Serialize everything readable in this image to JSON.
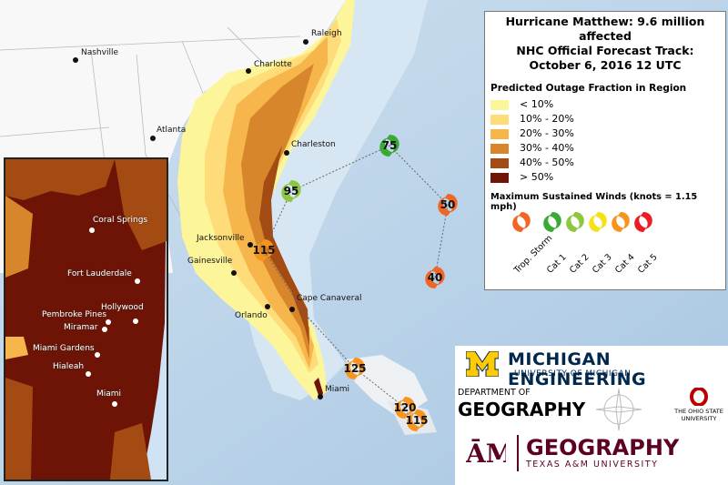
{
  "title": {
    "line1": "Hurricane Matthew: 9.6 million affected",
    "line2": "NHC Official Forecast Track:",
    "line3": "October 6, 2016 12 UTC"
  },
  "legend": {
    "outage_title": "Predicted Outage Fraction in Region",
    "bins": [
      {
        "label": "< 10%",
        "color": "#fdf59a"
      },
      {
        "label": "10% - 20%",
        "color": "#fedc7a"
      },
      {
        "label": "20% - 30%",
        "color": "#f6b64b"
      },
      {
        "label": "30% - 40%",
        "color": "#d7862c"
      },
      {
        "label": "40% - 50%",
        "color": "#a44b14"
      },
      {
        "label": "> 50%",
        "color": "#6d1406"
      }
    ],
    "wind_title": "Maximum Sustained Winds (knots = 1.15 mph)",
    "wind_categories": [
      {
        "label": "Trop. Storm",
        "color": "#f26522"
      },
      {
        "label": "Cat 1",
        "color": "#3aaa35"
      },
      {
        "label": "Cat 2",
        "color": "#8dc63f"
      },
      {
        "label": "Cat 3",
        "color": "#f7e017"
      },
      {
        "label": "Cat 4",
        "color": "#f7941d"
      },
      {
        "label": "Cat 5",
        "color": "#ed1c24"
      }
    ]
  },
  "cities": [
    "Nashville",
    "Raleigh",
    "Charlotte",
    "Atlanta",
    "Charleston",
    "Jacksonville",
    "Gainesville",
    "Orlando",
    "Cape Canaveral",
    "Miami"
  ],
  "inset_cities": [
    "Coral Springs",
    "Fort Lauderdale",
    "Hollywood",
    "Pembroke Pines",
    "Miramar",
    "Miami Gardens",
    "Hialeah",
    "Miami"
  ],
  "storm_track": [
    {
      "wind": "75",
      "color": "#3aaa35"
    },
    {
      "wind": "95",
      "color": "#8dc63f"
    },
    {
      "wind": "50",
      "color": "#f26522"
    },
    {
      "wind": "115",
      "color": "#f7941d"
    },
    {
      "wind": "40",
      "color": "#f26522"
    },
    {
      "wind": "125",
      "color": "#f7941d"
    },
    {
      "wind": "120",
      "color": "#f7941d"
    },
    {
      "wind": "115",
      "color": "#f7941d"
    }
  ],
  "logos": {
    "michigan": "MICHIGAN ENGINEERING",
    "michigan_sub": "UNIVERSITY OF MICHIGAN",
    "dept": "DEPARTMENT OF",
    "geography": "GEOGRAPHY",
    "osu": "THE OHIO STATE UNIVERSITY",
    "tam_geo": "GEOGRAPHY",
    "tam_sub": "TEXAS A&M UNIVERSITY"
  }
}
